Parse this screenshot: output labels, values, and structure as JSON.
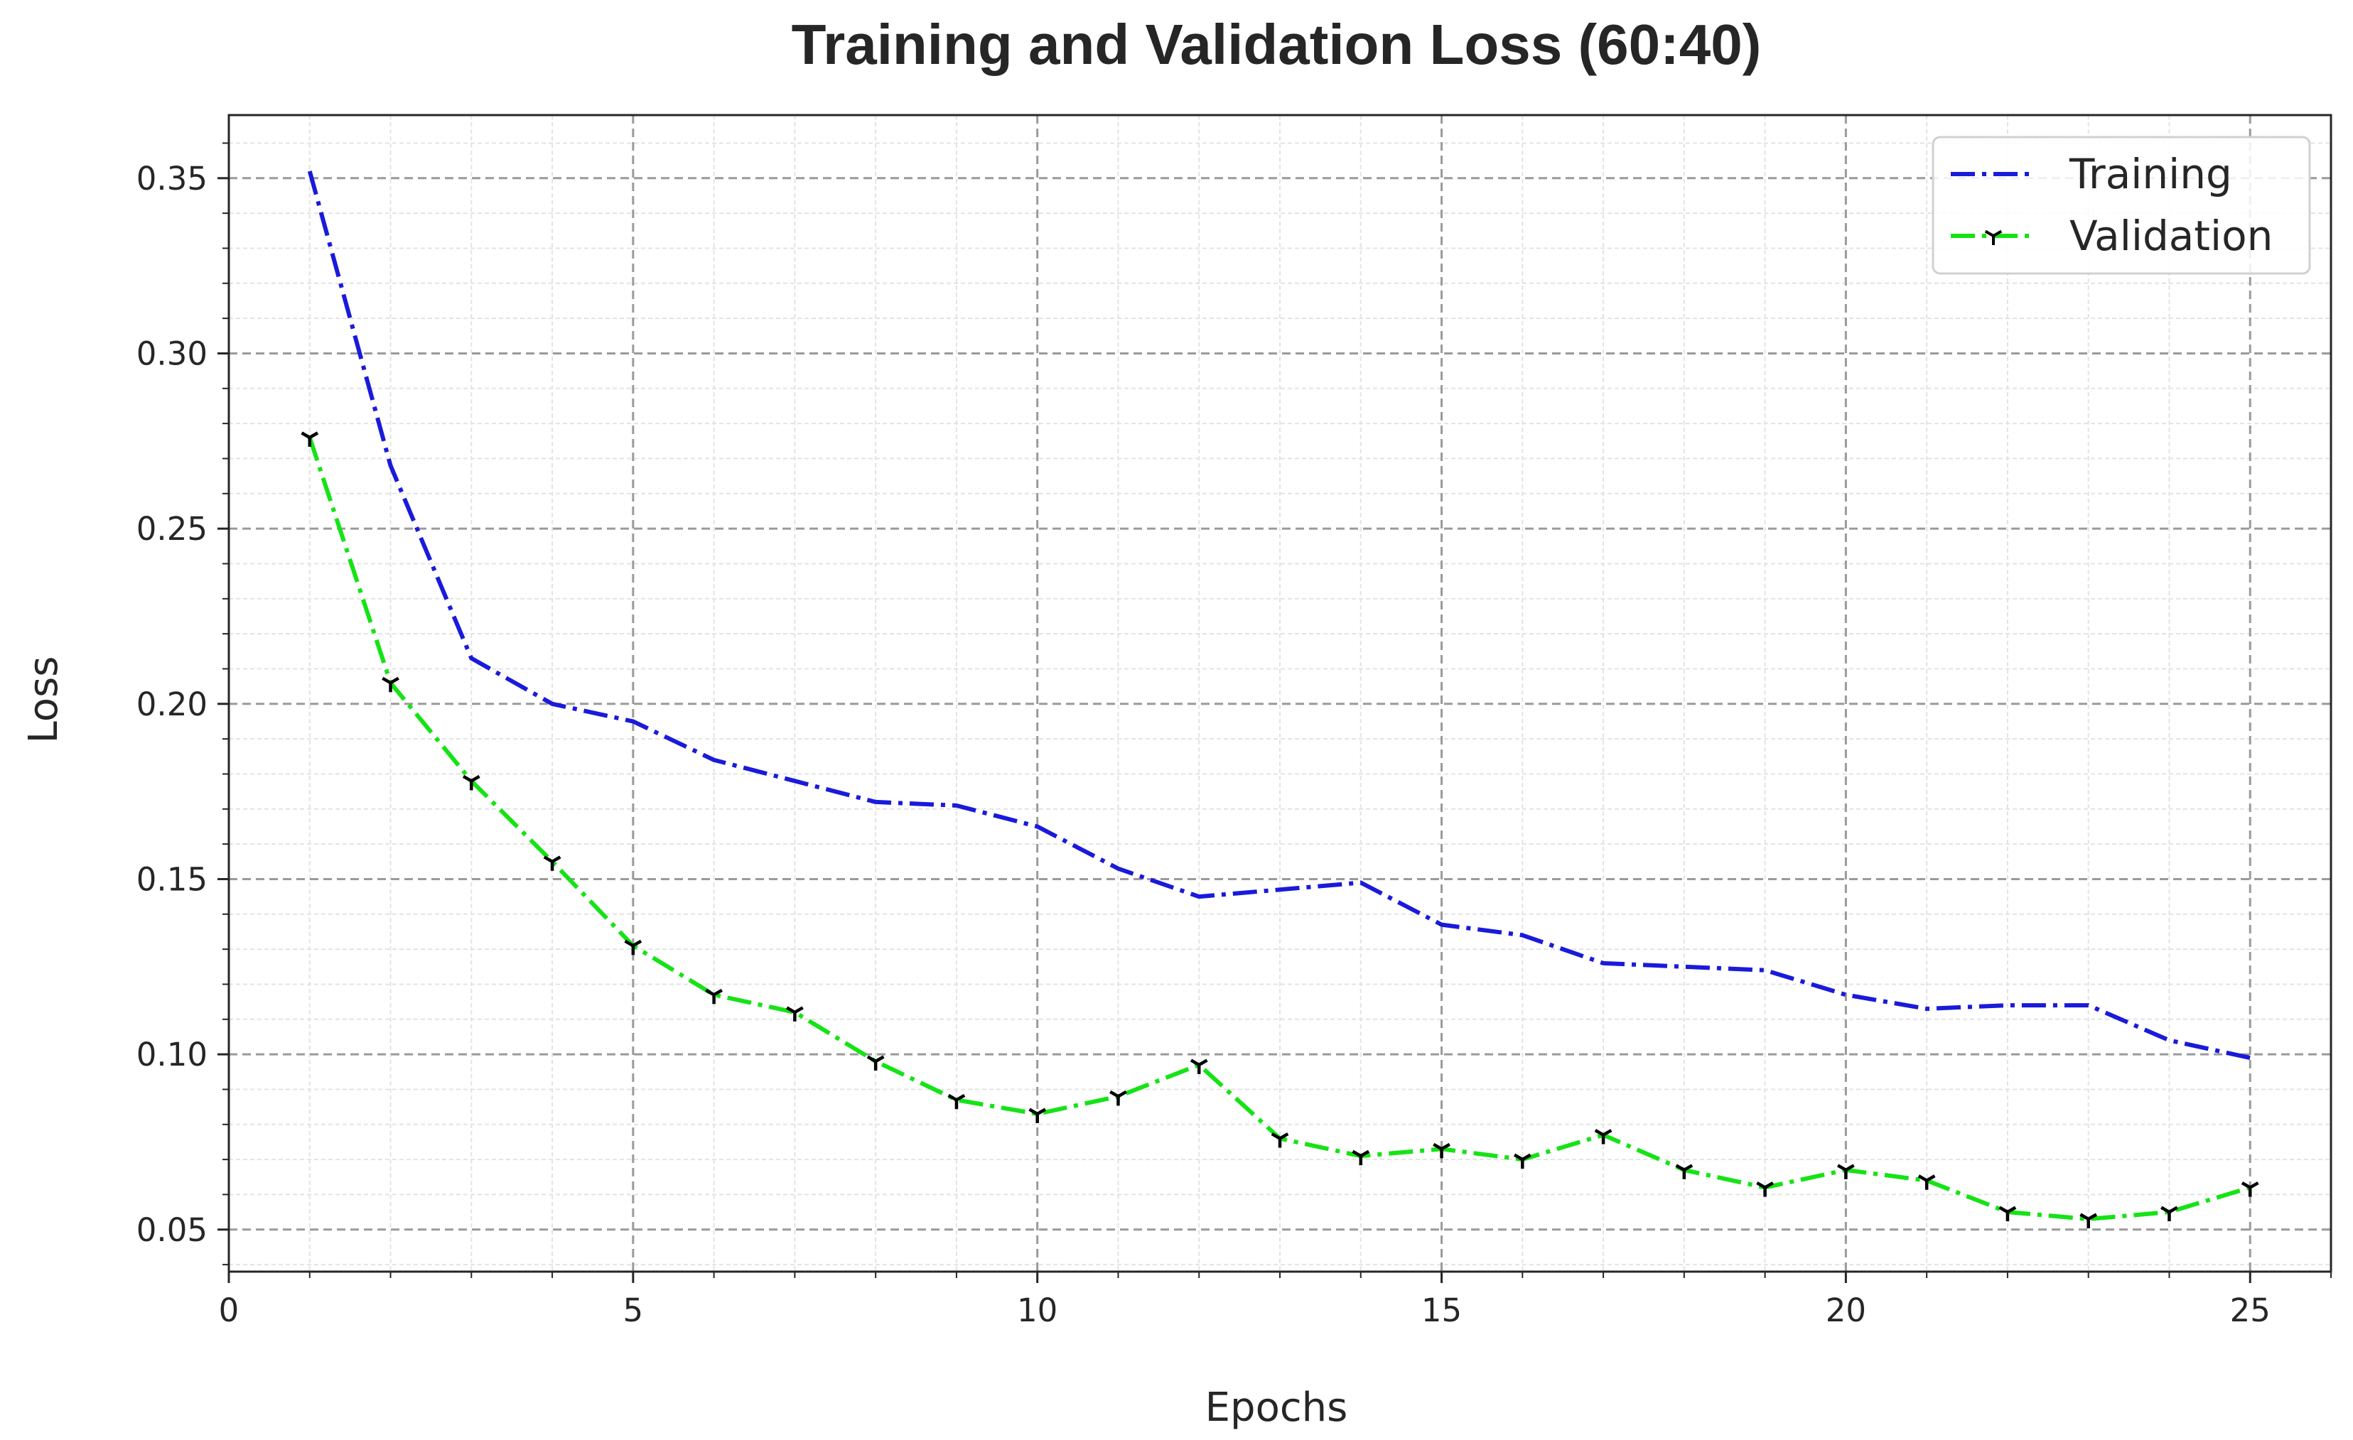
{
  "chart_data": {
    "type": "line",
    "title": "Training and Validation Loss (60:40)",
    "xlabel": "Epochs",
    "ylabel": "Loss",
    "xlim": [
      0,
      26
    ],
    "ylim": [
      0.038,
      0.368
    ],
    "x_ticks": [
      0,
      5,
      10,
      15,
      20,
      25
    ],
    "y_ticks": [
      0.05,
      0.1,
      0.15,
      0.2,
      0.25,
      0.3,
      0.35
    ],
    "x_tick_labels": [
      "0",
      "5",
      "10",
      "15",
      "20",
      "25"
    ],
    "y_tick_labels": [
      "0.05",
      "0.10",
      "0.15",
      "0.20",
      "0.25",
      "0.30",
      "0.35"
    ],
    "grid": true,
    "minor_grid": true,
    "legend_position": "top-right",
    "x": [
      1,
      2,
      3,
      4,
      5,
      6,
      7,
      8,
      9,
      10,
      11,
      12,
      13,
      14,
      15,
      16,
      17,
      18,
      19,
      20,
      21,
      22,
      23,
      24,
      25
    ],
    "series": [
      {
        "name": "Training",
        "color": "#1a1adb",
        "line_style": "dash-dot",
        "marker": "none",
        "values": [
          0.352,
          0.268,
          0.213,
          0.2,
          0.195,
          0.184,
          0.178,
          0.172,
          0.171,
          0.165,
          0.153,
          0.145,
          0.147,
          0.149,
          0.137,
          0.134,
          0.126,
          0.125,
          0.124,
          0.117,
          0.113,
          0.114,
          0.114,
          0.104,
          0.099
        ]
      },
      {
        "name": "Validation",
        "color": "#15e315",
        "line_style": "dash-dot",
        "marker": "tri-down",
        "marker_color": "#000000",
        "values": [
          0.276,
          0.206,
          0.178,
          0.155,
          0.131,
          0.117,
          0.112,
          0.098,
          0.087,
          0.083,
          0.088,
          0.097,
          0.076,
          0.071,
          0.073,
          0.07,
          0.077,
          0.067,
          0.062,
          0.067,
          0.064,
          0.055,
          0.053,
          0.055,
          0.062
        ]
      }
    ]
  }
}
